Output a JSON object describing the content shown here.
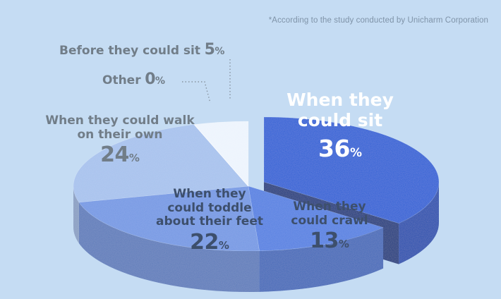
{
  "note": "*According to the study conducted by Unicharm Corporation",
  "colors": {
    "background": "#c5dcf3",
    "label_gray": "#717d88",
    "label_dark": "#3d4f6c"
  },
  "chart_data": {
    "type": "pie",
    "title": "",
    "slices": [
      {
        "label": "When they could sit",
        "value": 36,
        "unit": "%",
        "color": "#2f62d6"
      },
      {
        "label": "When they could crawl",
        "value": 13,
        "unit": "%",
        "color": "#5481e2"
      },
      {
        "label": "When they could toddle about their feet",
        "value": 22,
        "unit": "%",
        "color": "#7499e4"
      },
      {
        "label": "When they could walk on their own",
        "value": 24,
        "unit": "%",
        "color": "#a7c2ee"
      },
      {
        "label": "Other",
        "value": 0,
        "unit": "%",
        "color": "#d9e6f8"
      },
      {
        "label": "Before they could sit",
        "value": 5,
        "unit": "%",
        "color": "#eef4fd"
      }
    ]
  },
  "labels": {
    "sit": {
      "line1": "When they",
      "line2": "could sit",
      "value": "36",
      "unit": "%"
    },
    "crawl": {
      "line1": "When they",
      "line2": "could crawl",
      "value": "13",
      "unit": "%"
    },
    "toddle": {
      "line1": "When they",
      "line2": "could toddle",
      "line3": "about their feet",
      "value": "22",
      "unit": "%"
    },
    "walk": {
      "line1": "When they could walk",
      "line2": "on their own",
      "value": "24",
      "unit": "%"
    },
    "other": {
      "text": "Other",
      "value": "0",
      "unit": "%"
    },
    "before": {
      "text": "Before they could sit",
      "value": "5",
      "unit": "%"
    }
  }
}
